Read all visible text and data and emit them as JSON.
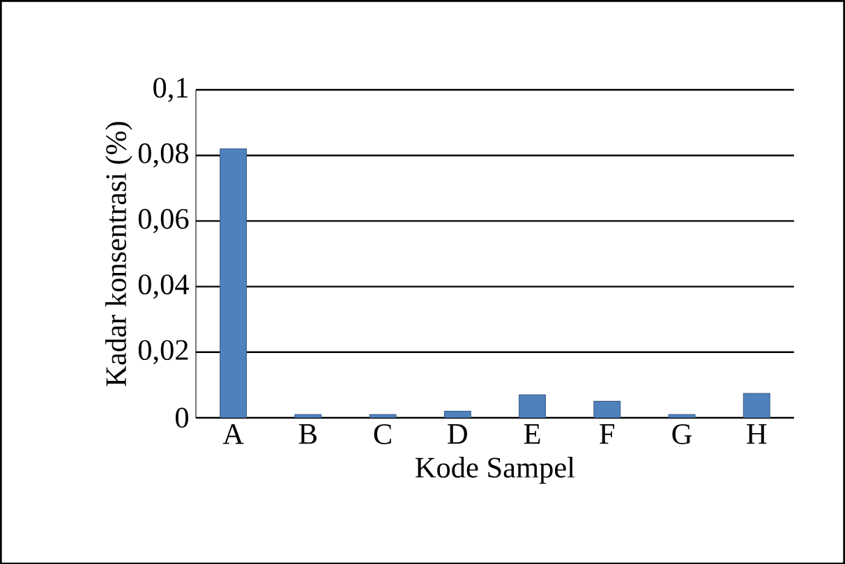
{
  "chart_data": {
    "type": "bar",
    "xlabel": "Kode Sampel",
    "ylabel": "Kadar konsentrasi (%)",
    "categories": [
      "A",
      "B",
      "C",
      "D",
      "E",
      "F",
      "G",
      "H"
    ],
    "values": [
      0.082,
      0.001,
      0.001,
      0.002,
      0.007,
      0.005,
      0.001,
      0.0074
    ],
    "color": "#4f81bd",
    "ylim": [
      0,
      0.1
    ],
    "yticks": [
      {
        "value": 0,
        "label": "0"
      },
      {
        "value": 0.02,
        "label": "0,02"
      },
      {
        "value": 0.04,
        "label": "0,04"
      },
      {
        "value": 0.06,
        "label": "0,06"
      },
      {
        "value": 0.08,
        "label": "0,08"
      },
      {
        "value": 0.1,
        "label": "0,1"
      }
    ],
    "grid": "y"
  }
}
